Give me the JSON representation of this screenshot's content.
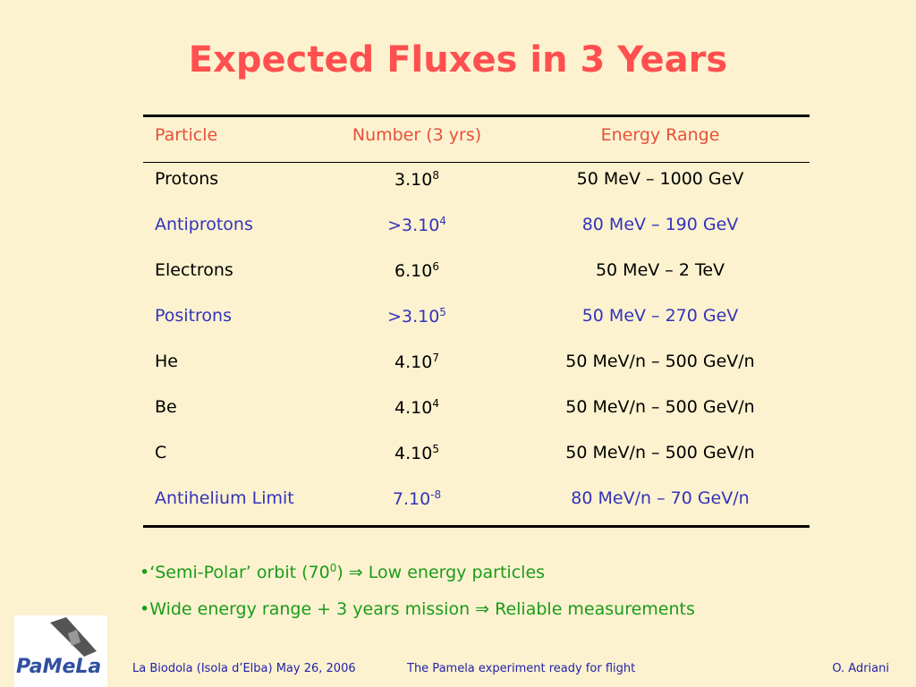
{
  "title": "Expected Fluxes in 3 Years",
  "table": {
    "headers": [
      "Particle",
      "Number (3 yrs)",
      "Energy Range"
    ],
    "rows": [
      {
        "particle": "Protons",
        "number": {
          "mantissa": "3.10",
          "exponent": "8"
        },
        "energy": "50 MeV – 1000 GeV",
        "color": "#000000"
      },
      {
        "particle": "Antiprotons",
        "number": {
          "mantissa": ">3.10",
          "exponent": "4"
        },
        "energy": "80 MeV – 190 GeV",
        "color": "#3333bb"
      },
      {
        "particle": "Electrons",
        "number": {
          "mantissa": "6.10",
          "exponent": "6"
        },
        "energy": "50 MeV – 2 TeV",
        "color": "#000000"
      },
      {
        "particle": "Positrons",
        "number": {
          "mantissa": ">3.10",
          "exponent": "5"
        },
        "energy": "50 MeV – 270 GeV",
        "color": "#3333bb"
      },
      {
        "particle": "He",
        "number": {
          "mantissa": "4.10",
          "exponent": "7"
        },
        "energy": "50 MeV/n – 500 GeV/n",
        "color": "#000000"
      },
      {
        "particle": "Be",
        "number": {
          "mantissa": "4.10",
          "exponent": "4"
        },
        "energy": "50 MeV/n – 500 GeV/n",
        "color": "#000000"
      },
      {
        "particle": "C",
        "number": {
          "mantissa": "4.10",
          "exponent": "5"
        },
        "energy": "50 MeV/n – 500 GeV/n",
        "color": "#000000"
      },
      {
        "particle": "Antihelium Limit",
        "number": {
          "mantissa": "7.10",
          "exponent": "-8"
        },
        "energy": "80 MeV/n – 70 GeV/n",
        "color": "#3333bb"
      }
    ]
  },
  "bullets": [
    {
      "before": "•‘Semi-Polar’ orbit (70",
      "sup": "0",
      "after": ") ⇒ Low energy particles"
    },
    {
      "before": "•Wide energy range + 3 years mission ⇒ Reliable measurements"
    }
  ],
  "logo": {
    "text": "PaMeLa"
  },
  "footer": {
    "left": "La Biodola (Isola d’Elba) May 26, 2006",
    "center": "The Pamela experiment ready for flight",
    "right": "O. Adriani"
  }
}
